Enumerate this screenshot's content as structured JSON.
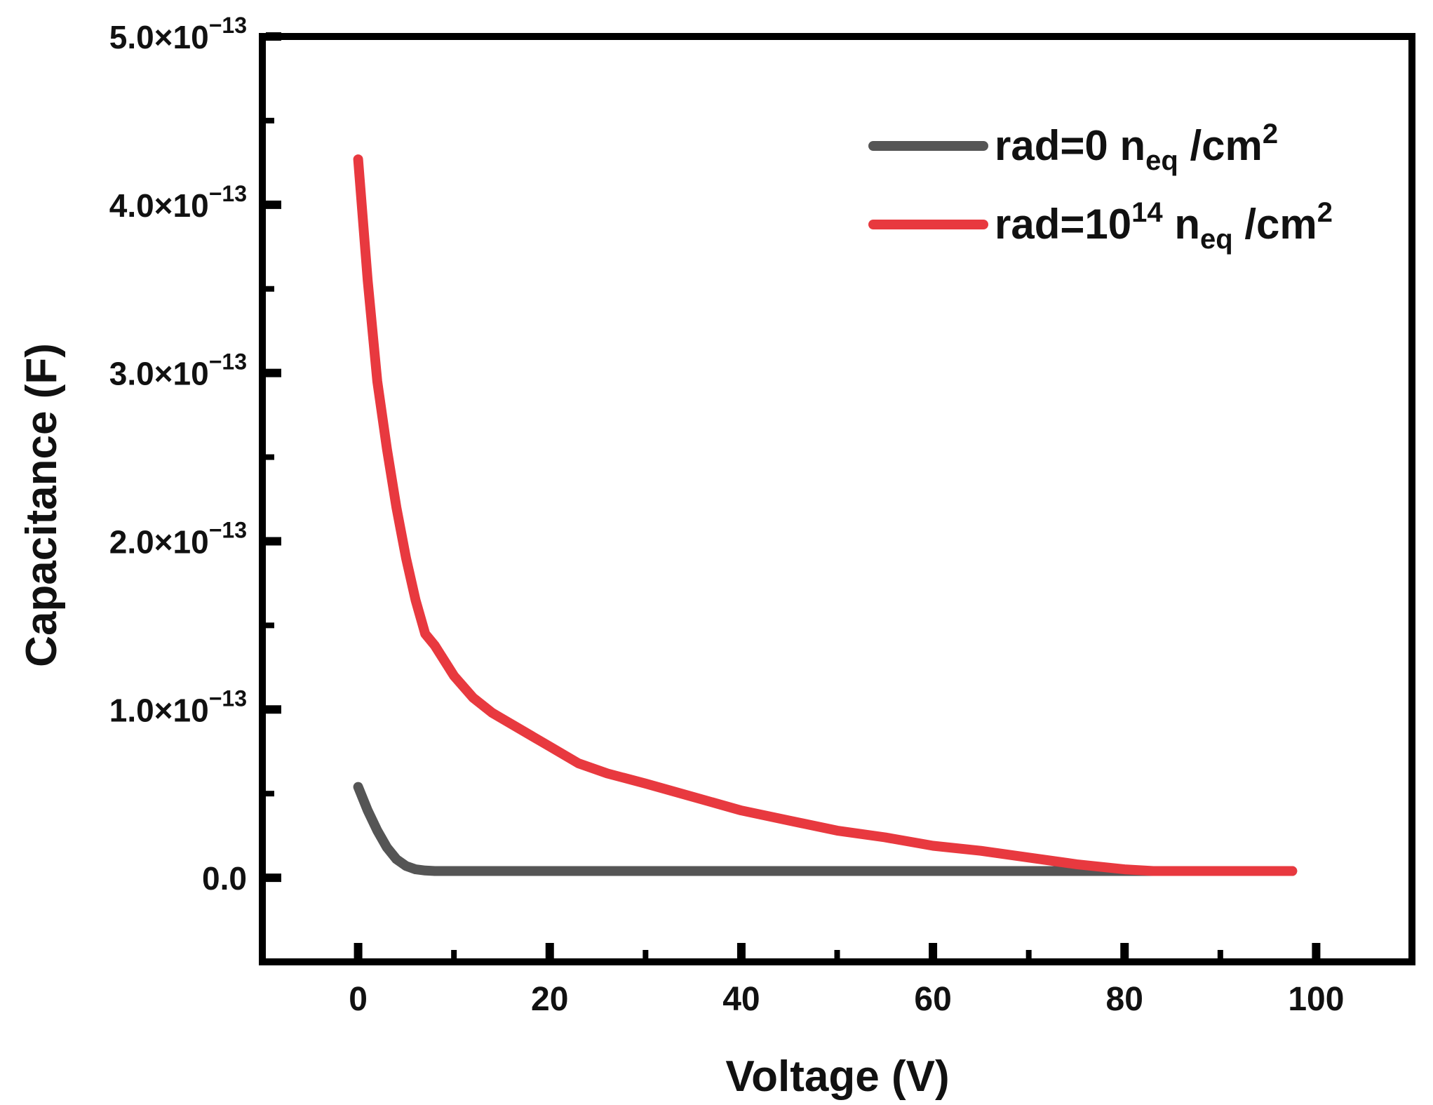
{
  "chart_data": {
    "type": "line",
    "title": "",
    "xlabel": "Voltage (V)",
    "ylabel": "Capacitance (F)",
    "xlim": [
      -10,
      110
    ],
    "ylim": [
      -5e-14,
      5e-13
    ],
    "grid": false,
    "legend_position": "top-right",
    "x_ticks": [
      {
        "value": 0,
        "label": "0"
      },
      {
        "value": 20,
        "label": "20"
      },
      {
        "value": 40,
        "label": "40"
      },
      {
        "value": 60,
        "label": "60"
      },
      {
        "value": 80,
        "label": "80"
      },
      {
        "value": 100,
        "label": "100"
      }
    ],
    "y_ticks": [
      {
        "value": 0,
        "mantissa": "0.0",
        "exponent": ""
      },
      {
        "value": 1e-13,
        "mantissa": "1.0×10",
        "exponent": "−13"
      },
      {
        "value": 2e-13,
        "mantissa": "2.0×10",
        "exponent": "−13"
      },
      {
        "value": 3e-13,
        "mantissa": "3.0×10",
        "exponent": "−13"
      },
      {
        "value": 4e-13,
        "mantissa": "4.0×10",
        "exponent": "−13"
      },
      {
        "value": 5e-13,
        "mantissa": "5.0×10",
        "exponent": "−13"
      }
    ],
    "series": [
      {
        "name": "rad=0 neq /cm2",
        "label_parts": {
          "prefix": "rad=0 n",
          "sub": "eq",
          "mid": " /cm",
          "sup": "2"
        },
        "color": "#555555",
        "x": [
          0,
          1,
          2,
          3,
          4,
          5,
          6,
          7,
          8,
          10,
          20,
          40,
          60,
          80,
          97.5
        ],
        "y": [
          5.4e-14,
          4e-14,
          2.8e-14,
          1.8e-14,
          1.1e-14,
          7e-15,
          5e-15,
          4.3e-15,
          4e-15,
          4e-15,
          4e-15,
          4e-15,
          4e-15,
          4e-15,
          4e-15
        ]
      },
      {
        "name": "rad=1014 neq /cm2",
        "label_parts": {
          "prefix": "rad=10",
          "sup1": "14",
          "mid1": " n",
          "sub": "eq",
          "mid2": " /cm",
          "sup2": "2"
        },
        "color": "#e8393f",
        "x": [
          0,
          1,
          2,
          3,
          4,
          5,
          6,
          7,
          8,
          10,
          12,
          14,
          17,
          20,
          23,
          26,
          30,
          35,
          40,
          45,
          50,
          55,
          60,
          65,
          70,
          75,
          80,
          83,
          90,
          97.5
        ],
        "y": [
          4.27e-13,
          3.55e-13,
          2.95e-13,
          2.55e-13,
          2.2e-13,
          1.9e-13,
          1.65e-13,
          1.45e-13,
          1.38e-13,
          1.2e-13,
          1.07e-13,
          9.8e-14,
          8.8e-14,
          7.8e-14,
          6.8e-14,
          6.2e-14,
          5.6e-14,
          4.8e-14,
          4e-14,
          3.4e-14,
          2.8e-14,
          2.4e-14,
          1.9e-14,
          1.6e-14,
          1.2e-14,
          8e-15,
          5e-15,
          4e-15,
          4e-15,
          4e-15
        ]
      }
    ]
  }
}
